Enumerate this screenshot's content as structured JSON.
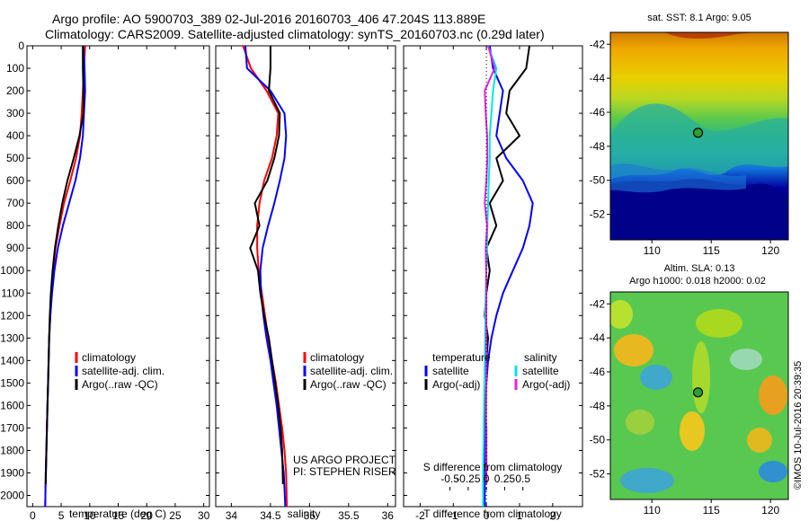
{
  "header": {
    "line1": "Argo profile: AO 5900703_389 02-Jul-2016 20160703_406 47.204S 113.889E",
    "line2": "Climatology: CARS2009. Satellite-adjusted climatology: synTS_20160703.nc (0.29d later)"
  },
  "side_note": "©IMOS 10-Jul-2016 20:39:35",
  "chart_data": [
    {
      "id": "temperature",
      "type": "line",
      "xlabel": "temperature (deg C)",
      "xlim": [
        -1,
        31
      ],
      "xticks": [
        0,
        5,
        10,
        15,
        20,
        25,
        30
      ],
      "xtick_labels": [
        "0",
        "5",
        "10",
        "15",
        "20",
        "25",
        "30"
      ],
      "ylim": [
        0,
        2050
      ],
      "yticks": [
        0,
        100,
        200,
        300,
        400,
        500,
        600,
        700,
        800,
        900,
        1000,
        1100,
        1200,
        1300,
        1400,
        1500,
        1600,
        1700,
        1800,
        1900,
        2000
      ],
      "ytick_labels": [
        "0",
        "100",
        "200",
        "300",
        "400",
        "500",
        "600",
        "700",
        "800",
        "900",
        "1000",
        "1100",
        "1200",
        "1300",
        "1400",
        "1500",
        "1600",
        "1700",
        "1800",
        "1900",
        "2000"
      ],
      "legend": [
        "climatology",
        "satellite-adj. clim.",
        "Argo(..raw -QC)"
      ],
      "legend_position": "lower-right",
      "series": [
        {
          "name": "climatology",
          "color": "#ff0000",
          "x": [
            9.2,
            9.0,
            8.8,
            8.6,
            8.3,
            7.6,
            6.6,
            5.5,
            4.7,
            4.0,
            3.6,
            3.3,
            3.1,
            2.9,
            2.8,
            2.7,
            2.6,
            2.5,
            2.4,
            2.3,
            2.2
          ],
          "y": [
            0,
            100,
            200,
            300,
            400,
            500,
            600,
            700,
            800,
            900,
            1000,
            1100,
            1200,
            1300,
            1400,
            1500,
            1600,
            1700,
            1800,
            1900,
            2050
          ]
        },
        {
          "name": "satellite-adj. clim.",
          "color": "#0000ff",
          "x": [
            8.9,
            9.1,
            9.2,
            9.0,
            8.8,
            8.3,
            7.5,
            6.4,
            5.3,
            4.4,
            3.8,
            3.4,
            3.1,
            2.9,
            2.8,
            2.7,
            2.6,
            2.5,
            2.4,
            2.3,
            2.2
          ],
          "y": [
            0,
            100,
            200,
            300,
            400,
            500,
            600,
            700,
            800,
            900,
            1000,
            1100,
            1200,
            1300,
            1400,
            1500,
            1600,
            1700,
            1800,
            1900,
            2050
          ]
        },
        {
          "name": "Argo(..raw -QC)",
          "color": "#000000",
          "x": [
            8.8,
            8.8,
            8.9,
            8.9,
            8.2,
            7.2,
            6.1,
            5.2,
            4.5,
            3.9,
            3.5,
            3.2,
            3.0,
            2.9,
            2.8,
            2.7,
            2.6,
            2.5,
            2.4,
            2.3
          ],
          "y": [
            0,
            100,
            200,
            300,
            400,
            500,
            600,
            700,
            800,
            900,
            1000,
            1100,
            1200,
            1300,
            1400,
            1500,
            1600,
            1700,
            1800,
            1950
          ]
        }
      ]
    },
    {
      "id": "salinity",
      "type": "line",
      "xlabel": "salinity",
      "xlim": [
        33.8,
        36.1
      ],
      "xticks": [
        34,
        34.5,
        35,
        35.5,
        36
      ],
      "xtick_labels": [
        "34",
        "34.5",
        "35",
        "35.5",
        "36"
      ],
      "ylim": [
        0,
        2050
      ],
      "legend": [
        "climatology",
        "satellite-adj. clim.",
        "Argo(..raw -QC)"
      ],
      "legend_position": "lower-right",
      "annotations": [
        "US ARGO PROJECT",
        "PI: STEPHEN RISER"
      ],
      "series": [
        {
          "name": "climatology",
          "color": "#ff0000",
          "x": [
            34.15,
            34.25,
            34.45,
            34.6,
            34.58,
            34.52,
            34.42,
            34.36,
            34.33,
            34.33,
            34.35,
            34.39,
            34.43,
            34.47,
            34.52,
            34.57,
            34.61,
            34.65,
            34.68,
            34.7,
            34.71
          ],
          "y": [
            0,
            100,
            200,
            300,
            400,
            500,
            600,
            700,
            800,
            900,
            1000,
            1100,
            1200,
            1300,
            1400,
            1500,
            1600,
            1700,
            1800,
            1900,
            2050
          ]
        },
        {
          "name": "satellite-adj. clim.",
          "color": "#0000ff",
          "x": [
            34.18,
            34.2,
            34.5,
            34.68,
            34.7,
            34.68,
            34.62,
            34.55,
            34.47,
            34.4,
            34.37,
            34.38,
            34.41,
            34.45,
            34.5,
            34.54,
            34.58,
            34.61,
            34.64,
            34.67,
            34.69
          ],
          "y": [
            0,
            100,
            200,
            300,
            400,
            500,
            600,
            700,
            800,
            900,
            1000,
            1100,
            1200,
            1300,
            1400,
            1500,
            1600,
            1700,
            1800,
            1900,
            2050
          ]
        },
        {
          "name": "Argo(..raw -QC)",
          "color": "#000000",
          "x": [
            34.5,
            34.5,
            34.48,
            34.62,
            34.61,
            34.55,
            34.46,
            34.3,
            34.36,
            34.24,
            34.34,
            34.37,
            34.42,
            34.48,
            34.52,
            34.56,
            34.6,
            34.63,
            34.65,
            34.66
          ],
          "y": [
            0,
            100,
            200,
            300,
            400,
            500,
            600,
            700,
            800,
            900,
            1000,
            1100,
            1200,
            1300,
            1400,
            1500,
            1600,
            1700,
            1800,
            1950
          ]
        }
      ]
    },
    {
      "id": "difference",
      "type": "line",
      "xlabel": "T difference from climatology",
      "xlabel2": "S difference from climatology",
      "xlim": [
        -2.5,
        2.9
      ],
      "xticks": [
        -2,
        -1,
        0,
        1,
        2
      ],
      "xtick_labels": [
        "-2",
        "-1",
        "0",
        "1",
        "2"
      ],
      "sticks": [
        -0.5,
        -0.25,
        0,
        0.25,
        0.5
      ],
      "stick_labels": [
        "-0.5",
        "-0.25",
        "0",
        "0.25",
        "0.5"
      ],
      "ylim": [
        0,
        2050
      ],
      "legend_temperature_title": "temperature",
      "legend_salinity_title": "salinity",
      "legend_temperature": [
        "satellite",
        "Argo(-adj)"
      ],
      "legend_salinity": [
        "satellite",
        "Argo(-adj)"
      ],
      "series": [
        {
          "name": "temperature satellite",
          "color": "#0000ff",
          "x": [
            0.1,
            0.2,
            0.5,
            0.4,
            0.3,
            0.6,
            1.1,
            1.4,
            1.3,
            1.1,
            0.8,
            0.5,
            0.3,
            0.15,
            0.05,
            0.0,
            -0.05,
            -0.05,
            -0.05,
            -0.05,
            -0.05
          ],
          "y": [
            0,
            100,
            200,
            300,
            400,
            500,
            600,
            700,
            800,
            900,
            1000,
            1100,
            1200,
            1300,
            1400,
            1500,
            1600,
            1700,
            1800,
            1900,
            2050
          ]
        },
        {
          "name": "temperature Argo(-adj)",
          "color": "#000000",
          "x": [
            1.3,
            1.2,
            0.7,
            0.6,
            1.0,
            0.3,
            0.5,
            0.1,
            0.3,
            0.0,
            0.1,
            0.0,
            -0.05,
            0.05,
            0.0,
            0.0,
            -0.05,
            0.0,
            0.0,
            0.0
          ],
          "y": [
            0,
            100,
            200,
            300,
            400,
            500,
            600,
            700,
            800,
            900,
            1000,
            1100,
            1200,
            1300,
            1400,
            1500,
            1600,
            1700,
            1800,
            1950
          ]
        },
        {
          "name": "salinity satellite",
          "color": "#00e5e5",
          "x": [
            0.05,
            0.3,
            0.2,
            0.15,
            0.1,
            0.1,
            0.07,
            0.05,
            0.03,
            0.02,
            0.0,
            -0.02,
            -0.03,
            -0.04,
            -0.05,
            -0.06,
            -0.07,
            -0.08,
            -0.09,
            -0.1,
            -0.1
          ],
          "y": [
            0,
            100,
            200,
            300,
            400,
            500,
            600,
            700,
            800,
            900,
            1000,
            1100,
            1200,
            1300,
            1400,
            1500,
            1600,
            1700,
            1800,
            1900,
            2050
          ]
        },
        {
          "name": "salinity Argo(-adj)",
          "color": "#e020e0",
          "x": [
            0.05,
            0.25,
            -0.05,
            -0.02,
            0.02,
            0.03,
            0.0,
            -0.05,
            0.02,
            -0.02,
            -0.01,
            0.0,
            0.0,
            0.0,
            0.0,
            0.0,
            -0.01,
            -0.01,
            -0.01,
            -0.01
          ],
          "y": [
            0,
            100,
            200,
            300,
            400,
            500,
            600,
            700,
            800,
            900,
            1000,
            1100,
            1200,
            1300,
            1400,
            1500,
            1600,
            1700,
            1800,
            1950
          ]
        }
      ]
    },
    {
      "id": "sst_map",
      "type": "heatmap",
      "title": "sat. SST: 8.1  Argo: 9.05",
      "xticks": [
        110,
        115,
        120
      ],
      "xtick_labels": [
        "110",
        "115",
        "120"
      ],
      "yticks": [
        -42,
        -44,
        -46,
        -48,
        -50,
        -52
      ],
      "ytick_labels": [
        "-42",
        "-44",
        "-46",
        "-48",
        "-50",
        "-52"
      ],
      "xlim": [
        106.5,
        121.5
      ],
      "ylim": [
        -53.5,
        -41.3
      ],
      "marker": {
        "lon": 113.889,
        "lat": -47.204
      }
    },
    {
      "id": "sla_map",
      "type": "heatmap",
      "title": "Altim. SLA: 0.13",
      "title2": "Argo h1000: 0.018 h2000: 0.02",
      "xticks": [
        110,
        115,
        120
      ],
      "xtick_labels": [
        "110",
        "115",
        "120"
      ],
      "yticks": [
        -42,
        -44,
        -46,
        -48,
        -50,
        -52
      ],
      "ytick_labels": [
        "-42",
        "-44",
        "-46",
        "-48",
        "-50",
        "-52"
      ],
      "xlim": [
        106.5,
        121.5
      ],
      "ylim": [
        -53.5,
        -41.3
      ],
      "marker": {
        "lon": 113.889,
        "lat": -47.204
      }
    }
  ]
}
